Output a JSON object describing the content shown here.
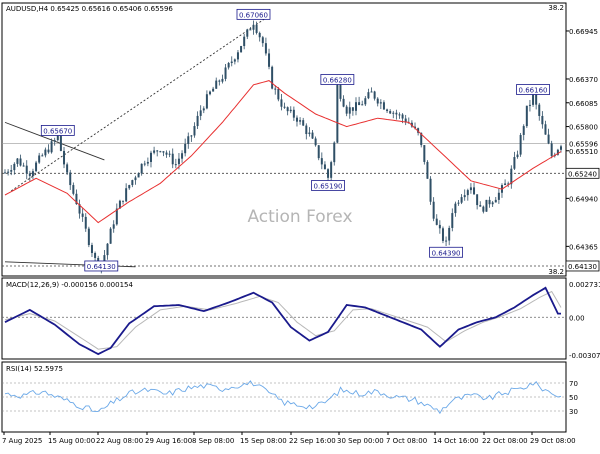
{
  "chart_data": {
    "type": "line",
    "panels": {
      "price": {
        "header": "AUDUSD,H4  0.65425 0.65616 0.65406 0.65596",
        "top_right_value": "38.2",
        "bottom_right_value": "38.2",
        "ylim": [
          0.6401,
          0.6728
        ],
        "y_ticks": [
          0.64365,
          0.6494,
          0.6551,
          0.658,
          0.66085,
          0.6637,
          0.66945
        ],
        "y_tick_labels": [
          "0.64365",
          "0.64940",
          "0.65510",
          "0.65800",
          "0.66085",
          "0.66370",
          "0.66945"
        ],
        "current_price": 0.65596,
        "current_price_label": "0.65596",
        "level_lines": [
          {
            "value": 0.6524,
            "label": "0.65240"
          },
          {
            "value": 0.6413,
            "label": "0.64130"
          }
        ],
        "watermark": "Action Forex",
        "annotations": [
          {
            "label": "0.65670",
            "x": 17,
            "y": 0.6567
          },
          {
            "label": "0.67060",
            "x": 80,
            "y": 0.6706
          },
          {
            "label": "0.66280",
            "x": 107,
            "y": 0.6628
          },
          {
            "label": "0.65190",
            "x": 104,
            "y": 0.6519
          },
          {
            "label": "0.66160",
            "x": 170,
            "y": 0.6616
          },
          {
            "label": "0.64390",
            "x": 142,
            "y": 0.6439
          },
          {
            "label": "0.64130",
            "x": 31,
            "y": 0.6413
          }
        ],
        "price_anchors": [
          [
            0,
            0.6525
          ],
          [
            4,
            0.654
          ],
          [
            8,
            0.6525
          ],
          [
            12,
            0.6545
          ],
          [
            17,
            0.6567
          ],
          [
            20,
            0.652
          ],
          [
            23,
            0.649
          ],
          [
            26,
            0.6455
          ],
          [
            29,
            0.642
          ],
          [
            31,
            0.6413
          ],
          [
            33,
            0.644
          ],
          [
            36,
            0.648
          ],
          [
            40,
            0.651
          ],
          [
            45,
            0.654
          ],
          [
            50,
            0.6555
          ],
          [
            55,
            0.6535
          ],
          [
            60,
            0.657
          ],
          [
            63,
            0.66
          ],
          [
            66,
            0.662
          ],
          [
            70,
            0.664
          ],
          [
            74,
            0.6665
          ],
          [
            77,
            0.6685
          ],
          [
            80,
            0.6706
          ],
          [
            83,
            0.668
          ],
          [
            86,
            0.663
          ],
          [
            90,
            0.66
          ],
          [
            94,
            0.659
          ],
          [
            98,
            0.657
          ],
          [
            101,
            0.6545
          ],
          [
            104,
            0.6519
          ],
          [
            106,
            0.656
          ],
          [
            107,
            0.6628
          ],
          [
            110,
            0.66
          ],
          [
            114,
            0.6605
          ],
          [
            118,
            0.662
          ],
          [
            122,
            0.6605
          ],
          [
            126,
            0.6595
          ],
          [
            130,
            0.6585
          ],
          [
            133,
            0.657
          ],
          [
            135,
            0.654
          ],
          [
            137,
            0.649
          ],
          [
            139,
            0.646
          ],
          [
            142,
            0.6439
          ],
          [
            144,
            0.648
          ],
          [
            147,
            0.65
          ],
          [
            150,
            0.651
          ],
          [
            153,
            0.648
          ],
          [
            156,
            0.649
          ],
          [
            159,
            0.65
          ],
          [
            162,
            0.6515
          ],
          [
            165,
            0.655
          ],
          [
            168,
            0.66
          ],
          [
            170,
            0.6616
          ],
          [
            173,
            0.658
          ],
          [
            176,
            0.6545
          ],
          [
            179,
            0.656
          ]
        ],
        "ma_anchors": [
          [
            0,
            0.6498
          ],
          [
            10,
            0.6518
          ],
          [
            20,
            0.65
          ],
          [
            30,
            0.6465
          ],
          [
            40,
            0.649
          ],
          [
            50,
            0.6512
          ],
          [
            60,
            0.6545
          ],
          [
            70,
            0.6585
          ],
          [
            80,
            0.663
          ],
          [
            85,
            0.6635
          ],
          [
            90,
            0.662
          ],
          [
            100,
            0.6595
          ],
          [
            110,
            0.658
          ],
          [
            120,
            0.659
          ],
          [
            130,
            0.6585
          ],
          [
            140,
            0.655
          ],
          [
            150,
            0.6515
          ],
          [
            160,
            0.6505
          ],
          [
            170,
            0.653
          ],
          [
            179,
            0.655
          ]
        ],
        "trendlines": [
          {
            "style": "dashed",
            "from": [
              2,
              0.6503
            ],
            "to": [
              84,
              0.671
            ]
          },
          {
            "style": "solid",
            "from": [
              0,
              0.6585
            ],
            "to": [
              32,
              0.654
            ]
          },
          {
            "style": "solid",
            "from": [
              0,
              0.6418
            ],
            "to": [
              42,
              0.6412
            ]
          }
        ]
      },
      "macd": {
        "header": "MACD(12,26,9) -0.000156 0.000154",
        "ylim": [
          -0.0034,
          0.0032
        ],
        "y_ticks": [
          0.002731,
          0.0,
          -0.003077
        ],
        "y_tick_labels": [
          "0.002731",
          "0.00",
          "-0.003077"
        ],
        "level_lines": [
          0.0
        ],
        "anchors": [
          [
            0,
            -0.0004
          ],
          [
            8,
            0.0006
          ],
          [
            16,
            -0.0006
          ],
          [
            24,
            -0.0022
          ],
          [
            30,
            -0.003
          ],
          [
            34,
            -0.0025
          ],
          [
            40,
            -0.0005
          ],
          [
            48,
            0.0009
          ],
          [
            56,
            0.001
          ],
          [
            64,
            0.0005
          ],
          [
            72,
            0.0012
          ],
          [
            80,
            0.002
          ],
          [
            86,
            0.0012
          ],
          [
            92,
            -0.0008
          ],
          [
            98,
            -0.0019
          ],
          [
            104,
            -0.0012
          ],
          [
            110,
            0.001
          ],
          [
            116,
            0.0008
          ],
          [
            122,
            0.0002
          ],
          [
            128,
            -0.0004
          ],
          [
            134,
            -0.001
          ],
          [
            140,
            -0.0024
          ],
          [
            146,
            -0.001
          ],
          [
            152,
            -0.0004
          ],
          [
            158,
            0.0
          ],
          [
            164,
            0.0008
          ],
          [
            170,
            0.0018
          ],
          [
            174,
            0.0024
          ],
          [
            178,
            0.0003
          ]
        ],
        "signal_anchors": [
          [
            0,
            -0.0002
          ],
          [
            8,
            0.0003
          ],
          [
            16,
            -0.0003
          ],
          [
            24,
            -0.0016
          ],
          [
            30,
            -0.0026
          ],
          [
            36,
            -0.0024
          ],
          [
            42,
            -0.0008
          ],
          [
            50,
            0.0006
          ],
          [
            58,
            0.0009
          ],
          [
            66,
            0.0006
          ],
          [
            74,
            0.0011
          ],
          [
            82,
            0.0017
          ],
          [
            88,
            0.0012
          ],
          [
            94,
            -0.0004
          ],
          [
            100,
            -0.0015
          ],
          [
            106,
            -0.0011
          ],
          [
            112,
            0.0006
          ],
          [
            118,
            0.0007
          ],
          [
            124,
            0.0002
          ],
          [
            130,
            -0.0003
          ],
          [
            136,
            -0.0008
          ],
          [
            142,
            -0.002
          ],
          [
            148,
            -0.0011
          ],
          [
            154,
            -0.0004
          ],
          [
            160,
            0.0001
          ],
          [
            166,
            0.0007
          ],
          [
            172,
            0.0016
          ],
          [
            176,
            0.0021
          ],
          [
            179,
            0.0008
          ]
        ]
      },
      "rsi": {
        "header": "RSI(14) 52.5975",
        "ylim": [
          0,
          100
        ],
        "y_ticks": [
          70,
          50,
          30
        ],
        "y_tick_labels": [
          "70",
          "50",
          "30"
        ],
        "level_lines": [
          70,
          50,
          30
        ],
        "anchors": [
          [
            0,
            55
          ],
          [
            6,
            52
          ],
          [
            12,
            58
          ],
          [
            18,
            48
          ],
          [
            24,
            38
          ],
          [
            30,
            28
          ],
          [
            34,
            40
          ],
          [
            40,
            55
          ],
          [
            46,
            60
          ],
          [
            52,
            54
          ],
          [
            58,
            62
          ],
          [
            64,
            66
          ],
          [
            70,
            62
          ],
          [
            76,
            68
          ],
          [
            80,
            70
          ],
          [
            84,
            58
          ],
          [
            90,
            42
          ],
          [
            96,
            38
          ],
          [
            100,
            36
          ],
          [
            104,
            45
          ],
          [
            108,
            60
          ],
          [
            114,
            55
          ],
          [
            120,
            58
          ],
          [
            126,
            50
          ],
          [
            132,
            46
          ],
          [
            136,
            38
          ],
          [
            140,
            30
          ],
          [
            144,
            45
          ],
          [
            150,
            52
          ],
          [
            156,
            48
          ],
          [
            160,
            55
          ],
          [
            166,
            62
          ],
          [
            170,
            70
          ],
          [
            174,
            60
          ],
          [
            178,
            52
          ]
        ]
      }
    },
    "x_axis": {
      "n_bars": 180,
      "tick_bars": [
        2,
        22,
        42,
        58,
        78,
        97,
        116,
        135,
        154,
        170
      ],
      "tick_labels": [
        "7 Aug 2025",
        "15 Aug 00:00",
        "22 Aug 08:00",
        "29 Aug 16:00",
        "8 Sep 08:00",
        "15 Sep 08:00",
        "22 Sep 16:00",
        "30 Sep 00:00",
        "7 Oct 08:00",
        "14 Oct 16:00",
        "22 Oct 08:00",
        "29 Oct 08:00"
      ],
      "tick_bars_full": [
        2,
        20,
        39,
        55,
        72,
        92,
        109,
        126,
        143,
        158,
        173,
        189
      ]
    },
    "colors": {
      "candles": "#2f4f66",
      "ma": "#e83030",
      "macd": "#1a1a8c",
      "macd_signal": "#b8b8b8",
      "rsi": "#6aa8e8",
      "annotation_border": "#1a1a8c"
    }
  }
}
